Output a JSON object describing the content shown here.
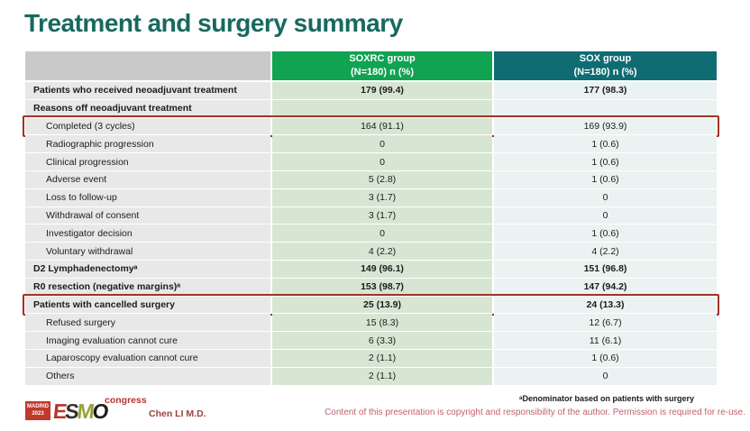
{
  "title": "Treatment and surgery summary",
  "colors": {
    "title_teal": "#17695f",
    "header_green": "#10a351",
    "header_teal": "#0f6c73",
    "header_gray": "#c9c9c9",
    "label_bg": "#e8e8e8",
    "soxrc_bg": "#d7e6d3",
    "sox_bg": "#eaf3f1",
    "highlight_red": "#a33127",
    "copyright_rose": "#c2606f"
  },
  "table": {
    "header": {
      "soxrc_line1": "SOXRC group",
      "soxrc_line2": "(N=180)  n (%)",
      "sox_line1": "SOX group",
      "sox_line2": "(N=180)  n (%)"
    },
    "rows": [
      {
        "label": "Patients who received neoadjuvant treatment",
        "soxrc": "179 (99.4)",
        "sox": "177 (98.3)",
        "bold": true,
        "indent": false,
        "highlight": false
      },
      {
        "label": "Reasons off neoadjuvant treatment",
        "soxrc": "",
        "sox": "",
        "bold": true,
        "indent": false,
        "highlight": false
      },
      {
        "label": "Completed (3 cycles)",
        "soxrc": "164 (91.1)",
        "sox": "169 (93.9)",
        "bold": false,
        "indent": true,
        "highlight": true
      },
      {
        "label": "Radiographic progression",
        "soxrc": "0",
        "sox": "1 (0.6)",
        "bold": false,
        "indent": true,
        "highlight": false
      },
      {
        "label": "Clinical progression",
        "soxrc": "0",
        "sox": "1 (0.6)",
        "bold": false,
        "indent": true,
        "highlight": false
      },
      {
        "label": "Adverse event",
        "soxrc": "5 (2.8)",
        "sox": "1 (0.6)",
        "bold": false,
        "indent": true,
        "highlight": false
      },
      {
        "label": "Loss to follow-up",
        "soxrc": "3 (1.7)",
        "sox": "0",
        "bold": false,
        "indent": true,
        "highlight": false
      },
      {
        "label": "Withdrawal of consent",
        "soxrc": "3 (1.7)",
        "sox": "0",
        "bold": false,
        "indent": true,
        "highlight": false
      },
      {
        "label": "Investigator decision",
        "soxrc": "0",
        "sox": "1 (0.6)",
        "bold": false,
        "indent": true,
        "highlight": false
      },
      {
        "label": "Voluntary withdrawal",
        "soxrc": "4 (2.2)",
        "sox": "4 (2.2)",
        "bold": false,
        "indent": true,
        "highlight": false
      },
      {
        "label": "D2 Lymphadenectomyᵃ",
        "soxrc": "149 (96.1)",
        "sox": "151 (96.8)",
        "bold": true,
        "indent": false,
        "highlight": false
      },
      {
        "label": "R0 resection (negative margins)ᵃ",
        "soxrc": "153 (98.7)",
        "sox": "147 (94.2)",
        "bold": true,
        "indent": false,
        "highlight": false
      },
      {
        "label": "Patients with cancelled surgery",
        "soxrc": "25 (13.9)",
        "sox": "24 (13.3)",
        "bold": true,
        "indent": false,
        "highlight": true
      },
      {
        "label": "Refused surgery",
        "soxrc": "15 (8.3)",
        "sox": "12 (6.7)",
        "bold": false,
        "indent": true,
        "highlight": false
      },
      {
        "label": "Imaging evaluation cannot cure",
        "soxrc": "6 (3.3)",
        "sox": "11 (6.1)",
        "bold": false,
        "indent": true,
        "highlight": false
      },
      {
        "label": "Laparoscopy evaluation cannot cure",
        "soxrc": "2 (1.1)",
        "sox": "1 (0.6)",
        "bold": false,
        "indent": true,
        "highlight": false
      },
      {
        "label": "Others",
        "soxrc": "2 (1.1)",
        "sox": "0",
        "bold": false,
        "indent": true,
        "highlight": false
      }
    ]
  },
  "footer": {
    "logo": {
      "venue_line1": "MADRID",
      "venue_line2": "2023",
      "letter_e": "E",
      "letter_s": "S",
      "letter_m": "M",
      "letter_o": "O",
      "congress": "congress"
    },
    "author": "Chen LI M.D.",
    "footnote": "ᵃDenominator based on patients with surgery",
    "copyright": "Content of this presentation is copyright and responsibility of the author. Permission is required for re-use."
  }
}
